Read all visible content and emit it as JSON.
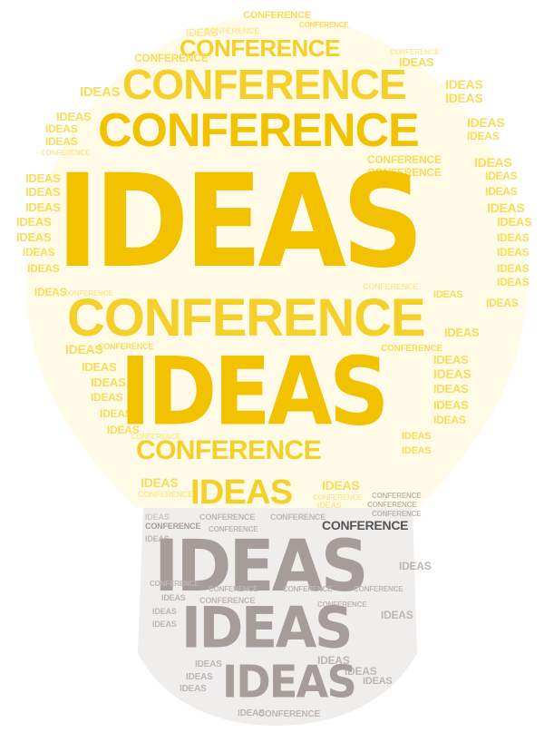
{
  "words": {
    "ideas": "IDEAS",
    "conference": "CONFERENCE"
  },
  "colors": {
    "bulb_glow": "#fffbe6",
    "yellow_primary": "#f2c200",
    "yellow_light": "#fbe89a",
    "base_gray": "#f0eeed",
    "gray_primary": "#a69d9a",
    "dark_accent": "#555555"
  }
}
